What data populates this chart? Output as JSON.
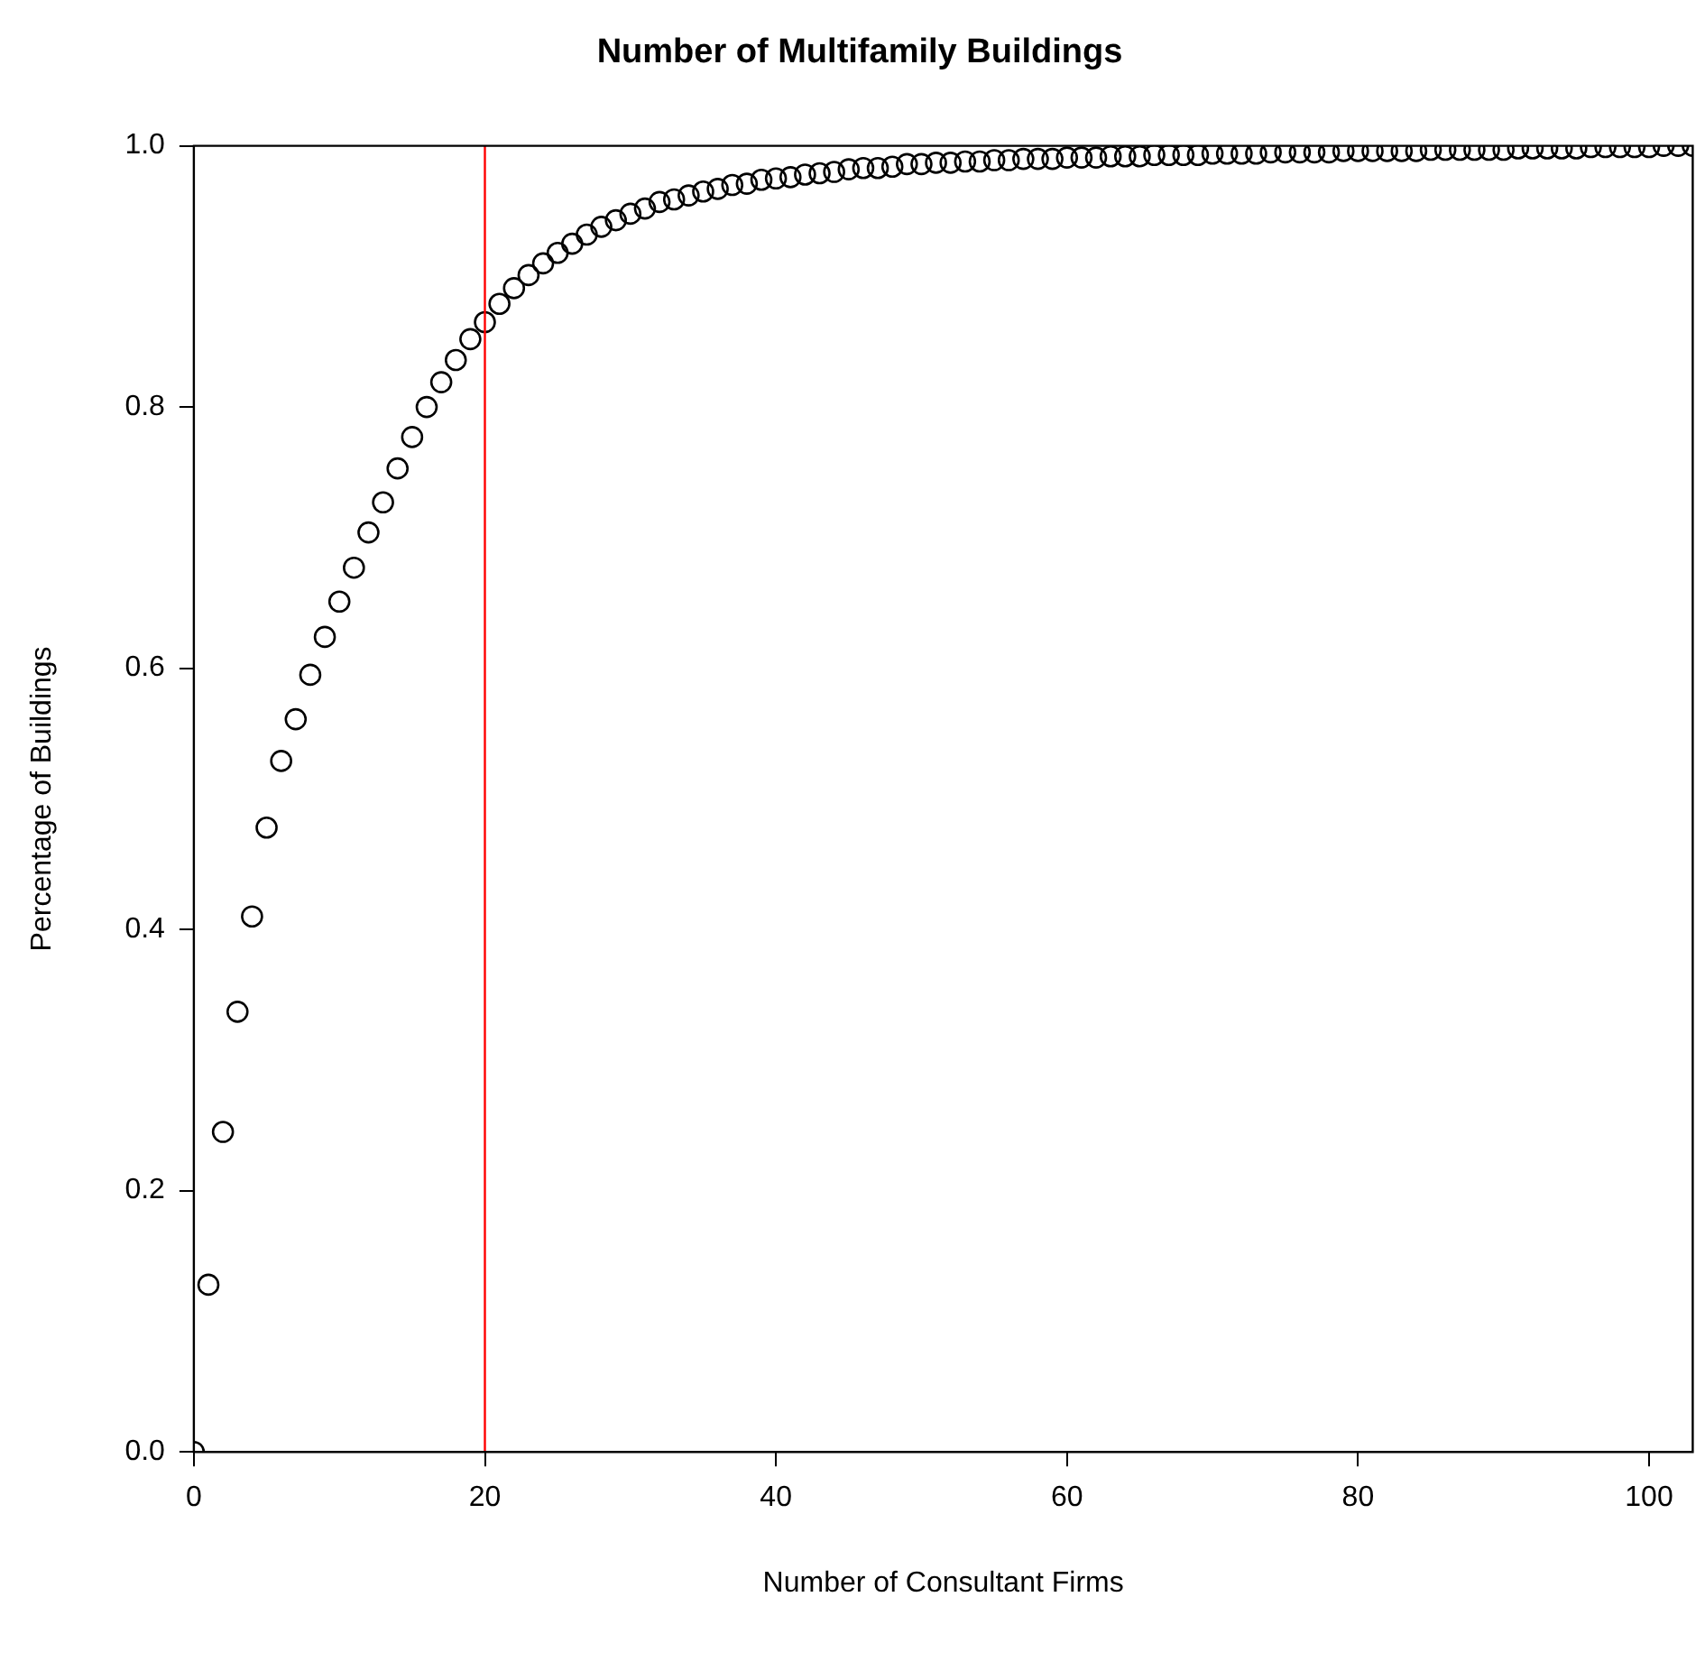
{
  "chart_data": {
    "type": "scatter",
    "title": "Number of Multifamily Buildings",
    "xlabel": "Number of Consultant Firms",
    "ylabel": "Percentage of Buildings",
    "x": [
      0,
      1,
      2,
      3,
      4,
      5,
      6,
      7,
      8,
      9,
      10,
      11,
      12,
      13,
      14,
      15,
      16,
      17,
      18,
      19,
      20,
      21,
      22,
      23,
      24,
      25,
      26,
      27,
      28,
      29,
      30,
      31,
      32,
      33,
      34,
      35,
      36,
      37,
      38,
      39,
      40,
      41,
      42,
      43,
      44,
      45,
      46,
      47,
      48,
      49,
      50,
      51,
      52,
      53,
      54,
      55,
      56,
      57,
      58,
      59,
      60,
      61,
      62,
      63,
      64,
      65,
      66,
      67,
      68,
      69,
      70,
      71,
      72,
      73,
      74,
      75,
      76,
      77,
      78,
      79,
      80,
      81,
      82,
      83,
      84,
      85,
      86,
      87,
      88,
      89,
      90,
      91,
      92,
      93,
      94,
      95,
      96,
      97,
      98,
      99,
      100,
      101,
      102,
      103
    ],
    "series": [
      {
        "color": "#000000",
        "values": [
          0,
          0.128,
          0.245,
          0.337,
          0.41,
          0.478,
          0.529,
          0.561,
          0.595,
          0.624,
          0.651,
          0.677,
          0.704,
          0.727,
          0.753,
          0.777,
          0.8,
          0.819,
          0.836,
          0.852,
          0.865,
          0.879,
          0.891,
          0.901,
          0.91,
          0.918,
          0.925,
          0.932,
          0.938,
          0.943,
          0.948,
          0.952,
          0.957,
          0.959,
          0.962,
          0.965,
          0.967,
          0.97,
          0.971,
          0.974,
          0.975,
          0.976,
          0.978,
          0.979,
          0.98,
          0.982,
          0.983,
          0.983,
          0.984,
          0.986,
          0.986,
          0.987,
          0.987,
          0.988,
          0.988,
          0.989,
          0.989,
          0.99,
          0.99,
          0.99,
          0.991,
          0.991,
          0.991,
          0.992,
          0.992,
          0.992,
          0.993,
          0.993,
          0.993,
          0.993,
          0.994,
          0.994,
          0.994,
          0.994,
          0.995,
          0.995,
          0.995,
          0.995,
          0.995,
          0.996,
          0.996,
          0.996,
          0.996,
          0.996,
          0.996,
          0.997,
          0.997,
          0.997,
          0.997,
          0.997,
          0.997,
          0.998,
          0.998,
          0.998,
          0.998,
          0.998,
          0.999,
          0.999,
          0.999,
          0.999,
          0.999,
          1,
          1,
          1
        ]
      }
    ],
    "xlim": [
      0,
      103
    ],
    "ylim": [
      0,
      1
    ],
    "xticks": [
      0,
      20,
      40,
      60,
      80,
      100
    ],
    "yticks": [
      {
        "value": 0,
        "label": "0.0"
      },
      {
        "value": 0.2,
        "label": "0.2"
      },
      {
        "value": 0.4,
        "label": "0.4"
      },
      {
        "value": 0.6,
        "label": "0.6"
      },
      {
        "value": 0.8,
        "label": "0.8"
      },
      {
        "value": 1,
        "label": "1.0"
      }
    ],
    "ref_lines": [
      {
        "axis": "x",
        "value": 20,
        "color": "#ff0000"
      }
    ],
    "marker": "circle",
    "grid": false,
    "legend": false
  }
}
